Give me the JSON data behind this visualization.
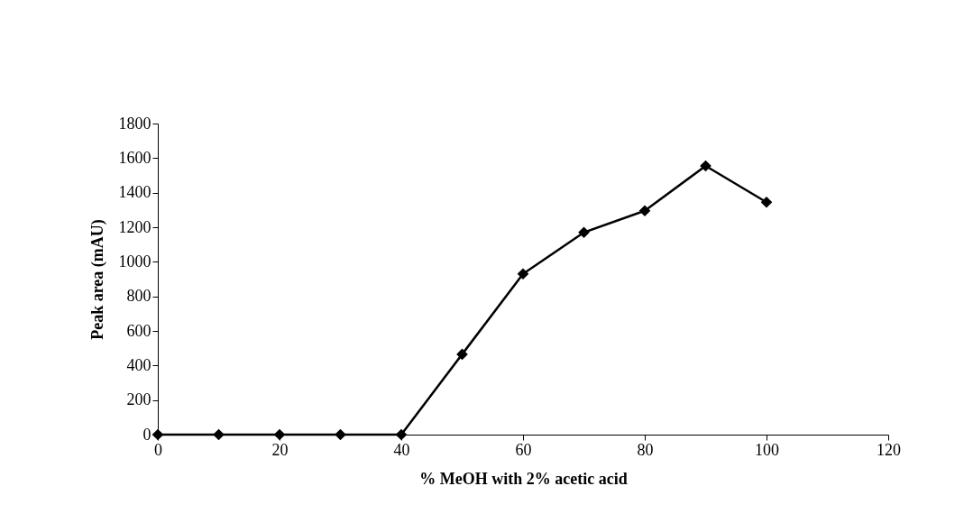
{
  "chart_data": {
    "type": "line",
    "xlabel": "% MeOH with 2% acetic acid",
    "ylabel": "Peak area (mAU)",
    "x": [
      0,
      10,
      20,
      30,
      40,
      50,
      60,
      70,
      80,
      90,
      100
    ],
    "series": [
      {
        "color": "#000000",
        "values": [
          0,
          0,
          0,
          0,
          0,
          465,
          930,
          1170,
          1295,
          1555,
          1345
        ]
      }
    ],
    "xlim": [
      0,
      120
    ],
    "xticks": [
      0,
      20,
      40,
      60,
      80,
      100,
      120
    ],
    "ylim": [
      0,
      1800
    ],
    "yticks": [
      0,
      200,
      400,
      600,
      800,
      1000,
      1200,
      1400,
      1600,
      1800
    ],
    "grid": false,
    "legend": false,
    "marker": "diamond",
    "line_style": "solid"
  }
}
